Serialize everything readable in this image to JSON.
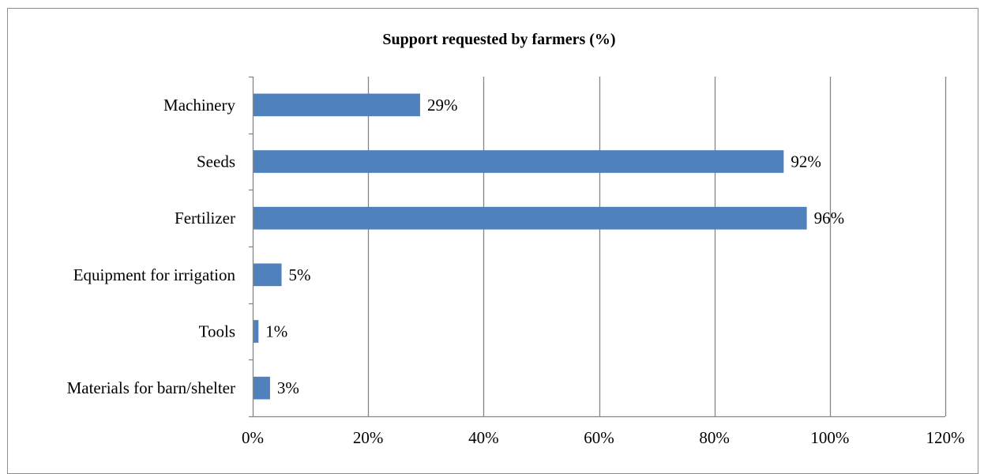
{
  "chart_data": {
    "type": "bar",
    "orientation": "horizontal",
    "title": "Support requested by farmers (%)",
    "xlabel": "",
    "ylabel": "",
    "categories": [
      "Machinery",
      "Seeds",
      "Fertilizer",
      "Equipment for irrigation",
      "Tools",
      "Materials for barn/shelter"
    ],
    "values": [
      29,
      92,
      96,
      5,
      1,
      3
    ],
    "data_labels": [
      "29%",
      "92%",
      "96%",
      "5%",
      "1%",
      "3%"
    ],
    "xlim": [
      0,
      120
    ],
    "x_ticks": [
      0,
      20,
      40,
      60,
      80,
      100,
      120
    ],
    "x_tick_labels": [
      "0%",
      "20%",
      "40%",
      "60%",
      "80%",
      "100%",
      "120%"
    ],
    "grid": "vertical major gridlines",
    "legend": "none",
    "colors": {
      "bar": "#4f81bd",
      "grid": "#868686",
      "axis": "#868686",
      "text": "#000000"
    }
  }
}
